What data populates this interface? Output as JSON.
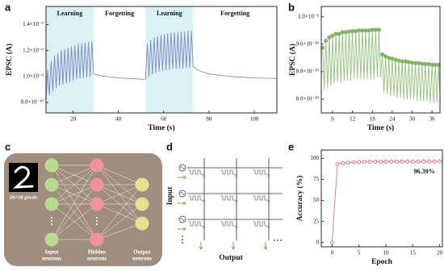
{
  "panel_labels": [
    "a",
    "b",
    "c",
    "d",
    "e"
  ],
  "chart_data": [
    {
      "type": "line",
      "xlabel": "Time (s)",
      "ylabel": "EPSC (A)",
      "xlim": [
        8,
        110
      ],
      "ylim": [
        7.2e-10,
        1.54e-09
      ],
      "xticks": [
        20,
        40,
        60,
        80,
        100
      ],
      "yticks": [
        {
          "value": 8e-10,
          "label": "8.0×10⁻¹⁰"
        },
        {
          "value": 1e-09,
          "label": "1.0×10⁻⁹"
        },
        {
          "value": 1.2e-09,
          "label": "1.2×10⁻⁹"
        },
        {
          "value": 1.4e-09,
          "label": "1.4×10⁻⁹"
        }
      ],
      "regions": [
        {
          "label": "Learning",
          "start": 8,
          "end": 29,
          "color": "#d9f2f4"
        },
        {
          "label": "Forgetting",
          "start": 29,
          "end": 52
        },
        {
          "label": "Learning",
          "start": 52,
          "end": 73,
          "color": "#d9f2f4"
        },
        {
          "label": "Forgetting",
          "start": 73,
          "end": 110
        }
      ],
      "series": [
        {
          "color": "#7d88c8",
          "x": [
            8,
            8.75,
            9.5,
            10.25,
            11,
            11.75,
            12.5,
            13.25,
            14,
            14.75,
            15.5,
            16.25,
            17,
            17.75,
            18.5,
            19.25,
            20,
            20.75,
            21.5,
            22.25,
            23,
            23.75,
            24.5,
            25.25,
            26,
            26.75,
            27.5,
            28.25,
            29,
            31,
            35,
            40,
            45,
            50,
            52,
            52.75,
            53.5,
            54.25,
            55,
            55.75,
            56.5,
            57.25,
            58,
            58.75,
            59.5,
            60.25,
            61,
            61.75,
            62.5,
            63.25,
            64,
            64.75,
            65.5,
            66.25,
            67,
            67.75,
            68.5,
            69.25,
            70,
            70.75,
            71.5,
            72.25,
            73,
            75,
            80,
            85,
            90,
            100,
            110
          ],
          "values": [
            8.2e-10,
            1.05e-09,
            8.6e-10,
            1.12e-09,
            8.9e-10,
            1.16e-09,
            9.1e-10,
            1.18e-09,
            9.3e-10,
            1.2e-09,
            9.4e-10,
            1.21e-09,
            9.5e-10,
            1.22e-09,
            9.6e-10,
            1.23e-09,
            9.7e-10,
            1.24e-09,
            9.8e-10,
            1.25e-09,
            9.85e-10,
            1.255e-09,
            9.9e-10,
            1.26e-09,
            9.95e-10,
            1.265e-09,
            1e-09,
            1.27e-09,
            1.02e-09,
            1.01e-09,
            1e-09,
            9.9e-10,
            9.85e-10,
            9.8e-10,
            9.8e-10,
            1.25e-09,
            1e-09,
            1.28e-09,
            1.02e-09,
            1.3e-09,
            1.03e-09,
            1.31e-09,
            1.04e-09,
            1.32e-09,
            1.045e-09,
            1.325e-09,
            1.05e-09,
            1.33e-09,
            1.055e-09,
            1.335e-09,
            1.06e-09,
            1.34e-09,
            1.06e-09,
            1.34e-09,
            1.065e-09,
            1.345e-09,
            1.065e-09,
            1.345e-09,
            1.07e-09,
            1.35e-09,
            1.07e-09,
            1.35e-09,
            1.08e-09,
            1.05e-09,
            1.02e-09,
            1.01e-09,
            1e-09,
            9.9e-10,
            9.85e-10
          ]
        }
      ]
    },
    {
      "type": "line",
      "xlabel": "Time (s)",
      "ylabel": "EPSC (A)",
      "xlim": [
        2.6,
        38.4
      ],
      "ylim": [
        7.6e-10,
        1.07e-09
      ],
      "xticks": [
        6,
        12,
        18,
        24,
        30,
        36
      ],
      "yticks": [
        {
          "value": 8e-10,
          "label": "8.0×10⁻¹⁰"
        },
        {
          "value": 8.8e-10,
          "label": "8.8×10⁻¹⁰"
        },
        {
          "value": 9.6e-10,
          "label": "9.6×10⁻¹⁰"
        },
        {
          "value": 1.04e-09,
          "label": "1.0×10⁻⁹"
        }
      ],
      "series": [
        {
          "color": "#93c27a",
          "markers": "peaks",
          "marker_color": "#7fb563",
          "x": [
            3,
            3.5,
            4,
            4.5,
            5,
            5.5,
            6,
            6.5,
            7,
            7.5,
            8,
            8.5,
            9,
            9.5,
            10,
            10.5,
            11,
            11.5,
            12,
            12.5,
            13,
            13.5,
            14,
            14.5,
            15,
            15.5,
            16,
            16.5,
            17,
            17.5,
            18,
            18.5,
            19,
            19.5,
            20,
            20.5,
            21,
            21.5,
            22,
            22.5,
            23,
            23.5,
            24,
            24.5,
            25,
            25.5,
            26,
            26.5,
            27,
            27.5,
            28,
            28.5,
            29,
            29.5,
            30,
            30.5,
            31,
            31.5,
            32,
            32.5,
            33,
            33.5,
            34,
            34.5,
            35,
            35.5,
            36,
            36.5,
            37,
            37.5,
            38,
            38.5
          ],
          "values": [
            9.5e-10,
            8.3e-10,
            9.7e-10,
            8.35e-10,
            9.8e-10,
            8.4e-10,
            9.85e-10,
            8.45e-10,
            9.9e-10,
            8.5e-10,
            9.9e-10,
            8.5e-10,
            9.95e-10,
            8.55e-10,
            9.95e-10,
            8.55e-10,
            9.97e-10,
            8.55e-10,
            9.98e-10,
            8.6e-10,
            9.98e-10,
            8.6e-10,
            1e-09,
            8.6e-10,
            1e-09,
            8.6e-10,
            1e-09,
            8.6e-10,
            1e-09,
            8.6e-10,
            1.002e-09,
            8.6e-10,
            1.002e-09,
            8.65e-10,
            1.002e-09,
            8.65e-10,
            9.3e-10,
            8.2e-10,
            9.25e-10,
            8.15e-10,
            9.2e-10,
            8.1e-10,
            9.18e-10,
            8.1e-10,
            9.15e-10,
            8.05e-10,
            9.12e-10,
            8.05e-10,
            9.1e-10,
            8e-10,
            9.1e-10,
            8e-10,
            9.08e-10,
            8e-10,
            9.06e-10,
            8e-10,
            9.05e-10,
            7.95e-10,
            9.05e-10,
            7.95e-10,
            9.03e-10,
            7.95e-10,
            9.02e-10,
            7.95e-10,
            9.02e-10,
            7.9e-10,
            9e-10,
            7.9e-10,
            9e-10,
            7.9e-10,
            9e-10,
            7.9e-10
          ]
        }
      ]
    },
    {
      "type": "line",
      "xlabel": "Epoch",
      "ylabel": "Accuracy (%)",
      "xlim": [
        -2,
        20.5
      ],
      "ylim": [
        -5,
        110
      ],
      "xticks": [
        0,
        5,
        10,
        15,
        20
      ],
      "yticks": [
        0,
        25,
        50,
        75,
        100
      ],
      "series": [
        {
          "color": "#ee6f84",
          "markers": "open-circle",
          "marker_color": "#e0506a",
          "x": [
            0,
            1,
            2,
            3,
            4,
            5,
            6,
            7,
            8,
            9,
            10,
            11,
            12,
            13,
            14,
            15,
            16,
            17,
            18,
            19,
            20
          ],
          "values": [
            0,
            93,
            94.5,
            95,
            95.5,
            95.7,
            95.8,
            96,
            96,
            96.1,
            96.1,
            96.2,
            96.2,
            96.2,
            96.3,
            96.3,
            96.3,
            96.35,
            96.35,
            96.37,
            96.39
          ],
          "value_labels": [
            null,
            null,
            null,
            null,
            null,
            null,
            null,
            null,
            null,
            null,
            null,
            null,
            null,
            null,
            null,
            null,
            null,
            null,
            null,
            null,
            "96.39%"
          ]
        }
      ]
    }
  ],
  "network": {
    "image_caption": "28×28 pixels",
    "layers": [
      {
        "label_lines": [
          "Input",
          "neurons"
        ]
      },
      {
        "label_lines": [
          "Hidden",
          "neurons"
        ]
      },
      {
        "label_lines": [
          "Output",
          "neurons"
        ]
      }
    ]
  },
  "crossbar": {
    "input_label": "Input",
    "output_label": "Output"
  }
}
